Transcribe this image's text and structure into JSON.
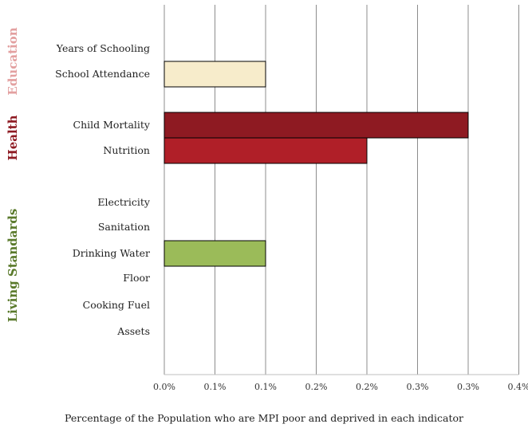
{
  "chart_data": {
    "type": "bar",
    "orientation": "horizontal",
    "categories": [
      "Years of Schooling",
      "School Attendance",
      "Child Mortality",
      "Nutrition",
      "Electricity",
      "Sanitation",
      "Drinking Water",
      "Floor",
      "Cooking Fuel",
      "Assets"
    ],
    "values": [
      0,
      0.1,
      0.3,
      0.2,
      0,
      0,
      0.1,
      0,
      0,
      0
    ],
    "bar_colors": [
      "#f7eccb",
      "#f7eccb",
      "#8e1a22",
      "#b01f28",
      "#9bbb59",
      "#9bbb59",
      "#9bbb59",
      "#9bbb59",
      "#9bbb59",
      "#9bbb59"
    ],
    "groups": [
      {
        "name": "Education",
        "color": "#e3a0a0",
        "categories": [
          "Years of Schooling",
          "School Attendance"
        ]
      },
      {
        "name": "Health",
        "color": "#8e1a22",
        "categories": [
          "Child Mortality",
          "Nutrition"
        ]
      },
      {
        "name": "Living Standards",
        "color": "#5a7a2b",
        "categories": [
          "Electricity",
          "Sanitation",
          "Drinking Water",
          "Floor",
          "Cooking Fuel",
          "Assets"
        ]
      }
    ],
    "x_ticks": [
      "0.0%",
      "0.1%",
      "0.1%",
      "0.2%",
      "0.2%",
      "0.3%",
      "0.3%",
      "0.4%"
    ],
    "xlim": [
      0,
      0.35
    ],
    "xlabel": "Percentage of the Population who are MPI poor and deprived in each indicator",
    "title": "",
    "grid": "vertical"
  }
}
